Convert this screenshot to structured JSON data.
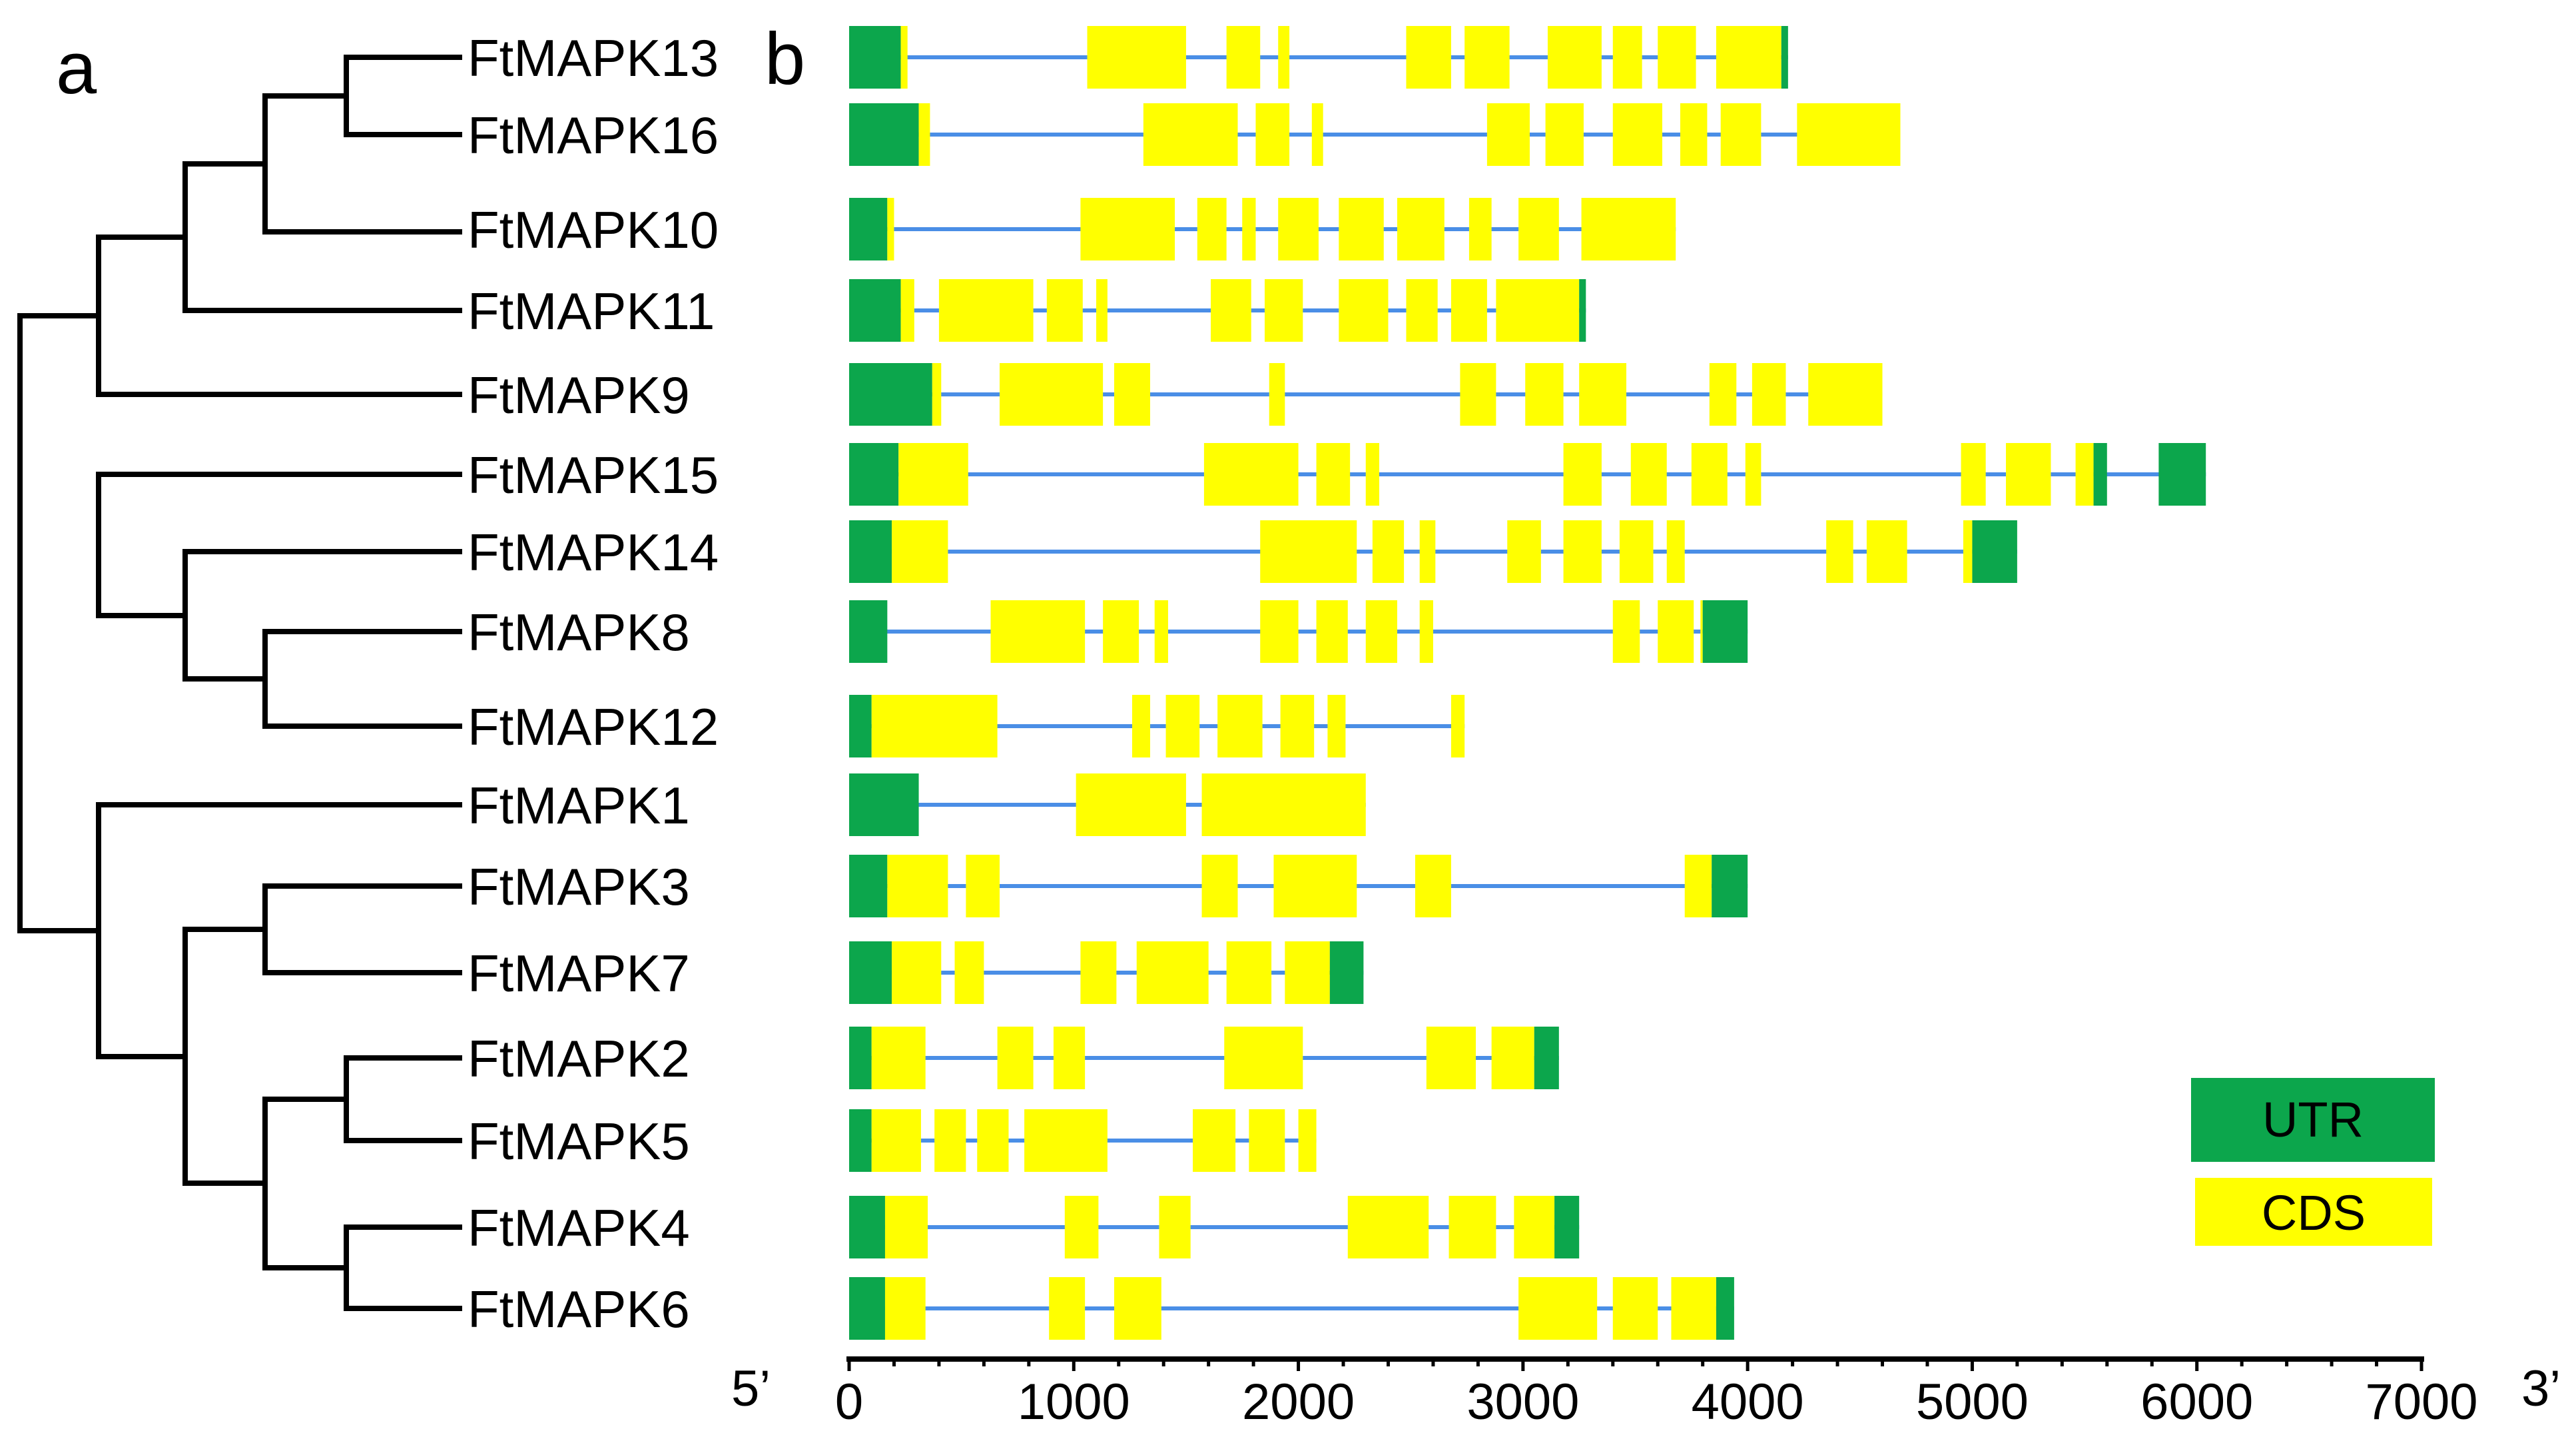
{
  "panels": {
    "a": "a",
    "b": "b"
  },
  "colors": {
    "utr": "#0ca64c",
    "cds": "#ffff00",
    "intron": "#4a8ee6",
    "tree": "#000000"
  },
  "legend": {
    "utr": "UTR",
    "cds": "CDS"
  },
  "axis": {
    "five_prime": "5’",
    "three_prime": "3’",
    "range": [
      0,
      7000
    ],
    "ticks": [
      "0",
      "1000",
      "2000",
      "3000",
      "4000",
      "5000",
      "6000",
      "7000"
    ]
  },
  "genes": [
    {
      "name": "FtMAPK13",
      "start": 0,
      "end": 4180,
      "segments": [
        {
          "type": "utr",
          "s": 0,
          "e": 230
        },
        {
          "type": "cds",
          "s": 230,
          "e": 260
        },
        {
          "type": "cds",
          "s": 1060,
          "e": 1500
        },
        {
          "type": "cds",
          "s": 1680,
          "e": 1830
        },
        {
          "type": "cds",
          "s": 1910,
          "e": 1960
        },
        {
          "type": "cds",
          "s": 2480,
          "e": 2680
        },
        {
          "type": "cds",
          "s": 2740,
          "e": 2940
        },
        {
          "type": "cds",
          "s": 3110,
          "e": 3350
        },
        {
          "type": "cds",
          "s": 3400,
          "e": 3530
        },
        {
          "type": "cds",
          "s": 3600,
          "e": 3770
        },
        {
          "type": "cds",
          "s": 3860,
          "e": 4150
        },
        {
          "type": "utr",
          "s": 4150,
          "e": 4180
        }
      ]
    },
    {
      "name": "FtMAPK16",
      "start": 0,
      "end": 4680,
      "segments": [
        {
          "type": "utr",
          "s": 0,
          "e": 310
        },
        {
          "type": "cds",
          "s": 310,
          "e": 360
        },
        {
          "type": "cds",
          "s": 1310,
          "e": 1730
        },
        {
          "type": "cds",
          "s": 1810,
          "e": 1960
        },
        {
          "type": "cds",
          "s": 2060,
          "e": 2110
        },
        {
          "type": "cds",
          "s": 2840,
          "e": 3030
        },
        {
          "type": "cds",
          "s": 3100,
          "e": 3270
        },
        {
          "type": "cds",
          "s": 3400,
          "e": 3620
        },
        {
          "type": "cds",
          "s": 3700,
          "e": 3820
        },
        {
          "type": "cds",
          "s": 3880,
          "e": 4060
        },
        {
          "type": "cds",
          "s": 4220,
          "e": 4680
        }
      ]
    },
    {
      "name": "FtMAPK10",
      "start": 0,
      "end": 3680,
      "segments": [
        {
          "type": "utr",
          "s": 0,
          "e": 170
        },
        {
          "type": "cds",
          "s": 170,
          "e": 200
        },
        {
          "type": "cds",
          "s": 1030,
          "e": 1450
        },
        {
          "type": "cds",
          "s": 1550,
          "e": 1680
        },
        {
          "type": "cds",
          "s": 1750,
          "e": 1810
        },
        {
          "type": "cds",
          "s": 1910,
          "e": 2090
        },
        {
          "type": "cds",
          "s": 2180,
          "e": 2380
        },
        {
          "type": "cds",
          "s": 2440,
          "e": 2650
        },
        {
          "type": "cds",
          "s": 2760,
          "e": 2860
        },
        {
          "type": "cds",
          "s": 2980,
          "e": 3160
        },
        {
          "type": "cds",
          "s": 3260,
          "e": 3680
        }
      ]
    },
    {
      "name": "FtMAPK11",
      "start": 0,
      "end": 3280,
      "segments": [
        {
          "type": "utr",
          "s": 0,
          "e": 230
        },
        {
          "type": "cds",
          "s": 230,
          "e": 290
        },
        {
          "type": "cds",
          "s": 400,
          "e": 820
        },
        {
          "type": "cds",
          "s": 880,
          "e": 1040
        },
        {
          "type": "cds",
          "s": 1100,
          "e": 1150
        },
        {
          "type": "cds",
          "s": 1610,
          "e": 1790
        },
        {
          "type": "cds",
          "s": 1850,
          "e": 2020
        },
        {
          "type": "cds",
          "s": 2180,
          "e": 2400
        },
        {
          "type": "cds",
          "s": 2480,
          "e": 2620
        },
        {
          "type": "cds",
          "s": 2680,
          "e": 2840
        },
        {
          "type": "cds",
          "s": 2880,
          "e": 3250
        },
        {
          "type": "utr",
          "s": 3250,
          "e": 3280
        }
      ]
    },
    {
      "name": "FtMAPK9",
      "start": 0,
      "end": 4600,
      "segments": [
        {
          "type": "utr",
          "s": 0,
          "e": 370
        },
        {
          "type": "cds",
          "s": 370,
          "e": 410
        },
        {
          "type": "cds",
          "s": 670,
          "e": 1130
        },
        {
          "type": "cds",
          "s": 1180,
          "e": 1340
        },
        {
          "type": "cds",
          "s": 1870,
          "e": 1940
        },
        {
          "type": "cds",
          "s": 2720,
          "e": 2880
        },
        {
          "type": "cds",
          "s": 3010,
          "e": 3180
        },
        {
          "type": "cds",
          "s": 3250,
          "e": 3460
        },
        {
          "type": "cds",
          "s": 3830,
          "e": 3950
        },
        {
          "type": "cds",
          "s": 4020,
          "e": 4170
        },
        {
          "type": "cds",
          "s": 4270,
          "e": 4600
        }
      ]
    },
    {
      "name": "FtMAPK15",
      "start": 0,
      "end": 6040,
      "segments": [
        {
          "type": "utr",
          "s": 0,
          "e": 220
        },
        {
          "type": "cds",
          "s": 220,
          "e": 530
        },
        {
          "type": "cds",
          "s": 1580,
          "e": 2000
        },
        {
          "type": "cds",
          "s": 2080,
          "e": 2230
        },
        {
          "type": "cds",
          "s": 2300,
          "e": 2360
        },
        {
          "type": "cds",
          "s": 3180,
          "e": 3350
        },
        {
          "type": "cds",
          "s": 3480,
          "e": 3640
        },
        {
          "type": "cds",
          "s": 3750,
          "e": 3910
        },
        {
          "type": "cds",
          "s": 3990,
          "e": 4060
        },
        {
          "type": "cds",
          "s": 4950,
          "e": 5060
        },
        {
          "type": "cds",
          "s": 5150,
          "e": 5350
        },
        {
          "type": "cds",
          "s": 5460,
          "e": 5540
        },
        {
          "type": "utr",
          "s": 5540,
          "e": 5600
        },
        {
          "type": "utr",
          "s": 5830,
          "e": 6040
        }
      ]
    },
    {
      "name": "FtMAPK14",
      "start": 0,
      "end": 5200,
      "segments": [
        {
          "type": "utr",
          "s": 0,
          "e": 190
        },
        {
          "type": "cds",
          "s": 190,
          "e": 440
        },
        {
          "type": "cds",
          "s": 1830,
          "e": 2260
        },
        {
          "type": "cds",
          "s": 2330,
          "e": 2470
        },
        {
          "type": "cds",
          "s": 2540,
          "e": 2610
        },
        {
          "type": "cds",
          "s": 2930,
          "e": 3080
        },
        {
          "type": "cds",
          "s": 3180,
          "e": 3350
        },
        {
          "type": "cds",
          "s": 3430,
          "e": 3580
        },
        {
          "type": "cds",
          "s": 3640,
          "e": 3720
        },
        {
          "type": "cds",
          "s": 4350,
          "e": 4470
        },
        {
          "type": "cds",
          "s": 4530,
          "e": 4710
        },
        {
          "type": "cds",
          "s": 4960,
          "e": 5000
        },
        {
          "type": "utr",
          "s": 5000,
          "e": 5200
        }
      ]
    },
    {
      "name": "FtMAPK8",
      "start": 0,
      "end": 4000,
      "segments": [
        {
          "type": "utr",
          "s": 0,
          "e": 170
        },
        {
          "type": "cds",
          "s": 630,
          "e": 1050
        },
        {
          "type": "cds",
          "s": 1130,
          "e": 1290
        },
        {
          "type": "cds",
          "s": 1360,
          "e": 1420
        },
        {
          "type": "cds",
          "s": 1830,
          "e": 2000
        },
        {
          "type": "cds",
          "s": 2080,
          "e": 2220
        },
        {
          "type": "cds",
          "s": 2300,
          "e": 2440
        },
        {
          "type": "cds",
          "s": 2540,
          "e": 2600
        },
        {
          "type": "cds",
          "s": 3400,
          "e": 3520
        },
        {
          "type": "cds",
          "s": 3600,
          "e": 3760
        },
        {
          "type": "cds",
          "s": 3790,
          "e": 3800
        },
        {
          "type": "utr",
          "s": 3800,
          "e": 4000
        }
      ]
    },
    {
      "name": "FtMAPK12",
      "start": 0,
      "end": 2740,
      "segments": [
        {
          "type": "utr",
          "s": 0,
          "e": 100
        },
        {
          "type": "cds",
          "s": 100,
          "e": 660
        },
        {
          "type": "cds",
          "s": 1260,
          "e": 1340
        },
        {
          "type": "cds",
          "s": 1410,
          "e": 1560
        },
        {
          "type": "cds",
          "s": 1640,
          "e": 1840
        },
        {
          "type": "cds",
          "s": 1920,
          "e": 2070
        },
        {
          "type": "cds",
          "s": 2130,
          "e": 2210
        },
        {
          "type": "cds",
          "s": 2680,
          "e": 2740
        }
      ]
    },
    {
      "name": "FtMAPK1",
      "start": 0,
      "end": 2300,
      "segments": [
        {
          "type": "utr",
          "s": 0,
          "e": 310
        },
        {
          "type": "cds",
          "s": 1010,
          "e": 1500
        },
        {
          "type": "cds",
          "s": 1570,
          "e": 2300
        }
      ]
    },
    {
      "name": "FtMAPK3",
      "start": 0,
      "end": 4000,
      "segments": [
        {
          "type": "utr",
          "s": 0,
          "e": 170
        },
        {
          "type": "cds",
          "s": 170,
          "e": 440
        },
        {
          "type": "cds",
          "s": 520,
          "e": 670
        },
        {
          "type": "cds",
          "s": 1570,
          "e": 1730
        },
        {
          "type": "cds",
          "s": 1890,
          "e": 2260
        },
        {
          "type": "cds",
          "s": 2520,
          "e": 2680
        },
        {
          "type": "cds",
          "s": 3720,
          "e": 3840
        },
        {
          "type": "utr",
          "s": 3840,
          "e": 4000
        }
      ]
    },
    {
      "name": "FtMAPK7",
      "start": 0,
      "end": 2290,
      "segments": [
        {
          "type": "utr",
          "s": 0,
          "e": 190
        },
        {
          "type": "cds",
          "s": 190,
          "e": 410
        },
        {
          "type": "cds",
          "s": 470,
          "e": 600
        },
        {
          "type": "cds",
          "s": 1030,
          "e": 1190
        },
        {
          "type": "cds",
          "s": 1280,
          "e": 1600
        },
        {
          "type": "cds",
          "s": 1680,
          "e": 1880
        },
        {
          "type": "cds",
          "s": 1940,
          "e": 2140
        },
        {
          "type": "utr",
          "s": 2140,
          "e": 2290
        }
      ]
    },
    {
      "name": "FtMAPK2",
      "start": 0,
      "end": 3160,
      "segments": [
        {
          "type": "utr",
          "s": 0,
          "e": 100
        },
        {
          "type": "cds",
          "s": 100,
          "e": 340
        },
        {
          "type": "cds",
          "s": 660,
          "e": 820
        },
        {
          "type": "cds",
          "s": 910,
          "e": 1050
        },
        {
          "type": "cds",
          "s": 1670,
          "e": 2020
        },
        {
          "type": "cds",
          "s": 2570,
          "e": 2790
        },
        {
          "type": "cds",
          "s": 2860,
          "e": 3050
        },
        {
          "type": "utr",
          "s": 3050,
          "e": 3160
        }
      ]
    },
    {
      "name": "FtMAPK5",
      "start": 0,
      "end": 2080,
      "segments": [
        {
          "type": "utr",
          "s": 0,
          "e": 100
        },
        {
          "type": "cds",
          "s": 100,
          "e": 320
        },
        {
          "type": "cds",
          "s": 380,
          "e": 520
        },
        {
          "type": "cds",
          "s": 570,
          "e": 710
        },
        {
          "type": "cds",
          "s": 780,
          "e": 1150
        },
        {
          "type": "cds",
          "s": 1530,
          "e": 1720
        },
        {
          "type": "cds",
          "s": 1780,
          "e": 1940
        },
        {
          "type": "cds",
          "s": 2000,
          "e": 2080
        }
      ]
    },
    {
      "name": "FtMAPK4",
      "start": 0,
      "end": 3250,
      "segments": [
        {
          "type": "utr",
          "s": 0,
          "e": 160
        },
        {
          "type": "cds",
          "s": 160,
          "e": 350
        },
        {
          "type": "cds",
          "s": 960,
          "e": 1110
        },
        {
          "type": "cds",
          "s": 1380,
          "e": 1520
        },
        {
          "type": "cds",
          "s": 2220,
          "e": 2580
        },
        {
          "type": "cds",
          "s": 2670,
          "e": 2880
        },
        {
          "type": "cds",
          "s": 2960,
          "e": 3140
        },
        {
          "type": "utr",
          "s": 3140,
          "e": 3250
        }
      ]
    },
    {
      "name": "FtMAPK6",
      "start": 0,
      "end": 3940,
      "segments": [
        {
          "type": "utr",
          "s": 0,
          "e": 160
        },
        {
          "type": "cds",
          "s": 160,
          "e": 340
        },
        {
          "type": "cds",
          "s": 890,
          "e": 1050
        },
        {
          "type": "cds",
          "s": 1180,
          "e": 1390
        },
        {
          "type": "cds",
          "s": 2980,
          "e": 3330
        },
        {
          "type": "cds",
          "s": 3400,
          "e": 3600
        },
        {
          "type": "cds",
          "s": 3660,
          "e": 3860
        },
        {
          "type": "utr",
          "s": 3860,
          "e": 3940
        }
      ]
    }
  ]
}
